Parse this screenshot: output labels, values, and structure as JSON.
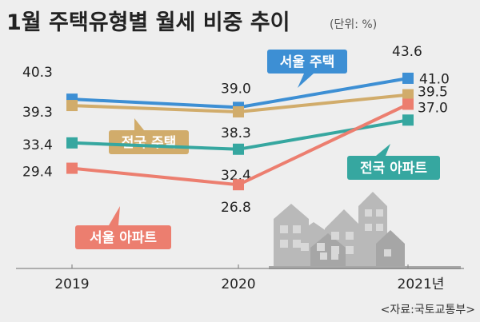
{
  "title": "1월 주택유형별 월세 비중 추이",
  "unit": "(단위: %)",
  "source": "<자료:국토교통부>",
  "chart_data": {
    "type": "line",
    "title": "1월 주택유형별 월세 비중 추이",
    "x": [
      "2019",
      "2020",
      "2021년"
    ],
    "ylim": [
      25,
      45
    ],
    "grid": false,
    "series": [
      {
        "name": "서울 주택",
        "values": [
          40.3,
          39.0,
          43.6
        ],
        "color": "#3d8fd4"
      },
      {
        "name": "전국 주택",
        "values": [
          39.3,
          38.3,
          41.0
        ],
        "color": "#d1ac6b"
      },
      {
        "name": "전국 아파트",
        "values": [
          33.4,
          32.4,
          37.0
        ],
        "color": "#36a7a0"
      },
      {
        "name": "서울 아파트",
        "values": [
          29.4,
          26.8,
          39.5
        ],
        "color": "#ec7e6f"
      }
    ],
    "value_labels": [
      [
        "40.3",
        "39.0",
        "43.6"
      ],
      [
        "39.3",
        "38.3",
        "41.0"
      ],
      [
        "33.4",
        "32.4",
        "37.0"
      ],
      [
        "29.4",
        "26.8",
        "39.5"
      ]
    ]
  }
}
